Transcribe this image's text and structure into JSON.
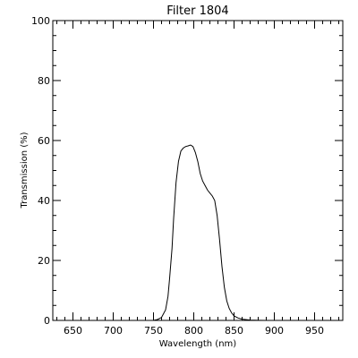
{
  "chart_data": {
    "type": "line",
    "title": "Filter 1804",
    "xlabel": "Wavelength (nm)",
    "ylabel": "Transmission (%)",
    "xlim": [
      625,
      985
    ],
    "ylim": [
      0,
      100
    ],
    "x_ticks": [
      650,
      700,
      750,
      800,
      850,
      900,
      950
    ],
    "y_ticks": [
      0,
      20,
      40,
      60,
      80,
      100
    ],
    "x_minor_step": 10,
    "y_minor_step": 5,
    "grid": false,
    "colors": {
      "line": "#000000",
      "axes": "#000000",
      "background": "#ffffff"
    },
    "series": [
      {
        "x": [
          740,
          750,
          755,
          760,
          765,
          768,
          770,
          773,
          775,
          778,
          781,
          784,
          787,
          790,
          793,
          796,
          799,
          802,
          805,
          808,
          811,
          814,
          817,
          820,
          823,
          826,
          829,
          832,
          835,
          838,
          841,
          844,
          847,
          850,
          855,
          860,
          870,
          880,
          890,
          900
        ],
        "y": [
          0,
          0,
          0.3,
          1.0,
          3.5,
          8,
          14,
          24,
          34,
          46,
          53,
          56.5,
          57.5,
          58,
          58.2,
          58.5,
          58,
          56,
          53,
          49,
          46.5,
          45,
          43.5,
          42.5,
          41.5,
          40,
          35,
          27,
          18,
          11,
          6.5,
          4,
          2.5,
          1.5,
          0.8,
          0.4,
          0.1,
          0.05,
          0,
          0
        ]
      }
    ]
  }
}
